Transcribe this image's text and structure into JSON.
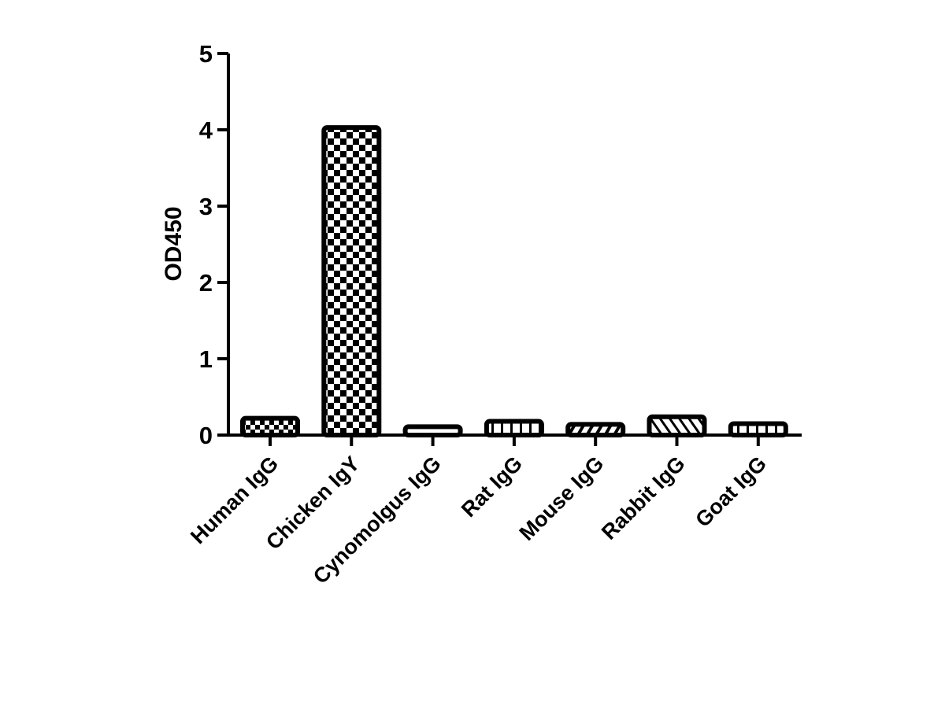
{
  "chart_data": {
    "type": "bar",
    "title": "",
    "xlabel": "",
    "ylabel": "OD450",
    "ylim": [
      0,
      5
    ],
    "yticks": [
      "0",
      "1",
      "2",
      "3",
      "4",
      "5"
    ],
    "grid": false,
    "categories": [
      "Human IgG",
      "Chicken IgY",
      "Cynomolgus IgG",
      "Rat IgG",
      "Mouse IgG",
      "Rabbit IgG",
      "Goat IgG"
    ],
    "values": [
      0.22,
      4.03,
      0.11,
      0.18,
      0.14,
      0.24,
      0.15
    ],
    "patterns": [
      "fine-checker",
      "checker",
      "empty",
      "vertical-lines",
      "forward-diagonal",
      "back-diagonal",
      "vertical-lines"
    ],
    "colors": {
      "stroke": "#000000",
      "fill": "#ffffff"
    }
  }
}
